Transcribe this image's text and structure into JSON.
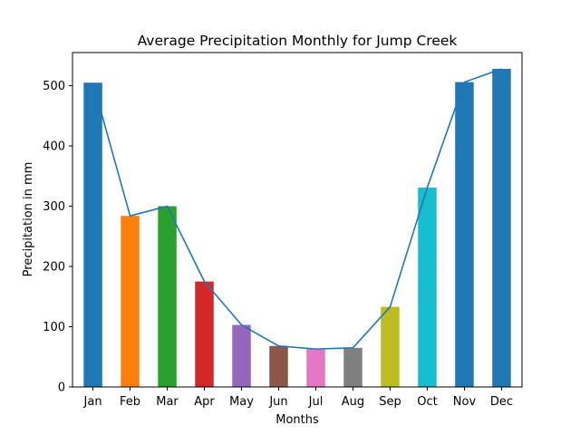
{
  "chart_data": {
    "type": "bar",
    "title": "Average Precipitation Monthly for Jump Creek",
    "xlabel": "Months",
    "ylabel": "Precipitation in mm",
    "categories": [
      "Jan",
      "Feb",
      "Mar",
      "Apr",
      "May",
      "Jun",
      "Jul",
      "Aug",
      "Sep",
      "Oct",
      "Nov",
      "Dec"
    ],
    "series": [
      {
        "name": "Precipitation (bars)",
        "type": "bar",
        "values": [
          505,
          284,
          300,
          175,
          103,
          68,
          63,
          65,
          133,
          331,
          506,
          528
        ]
      },
      {
        "name": "Precipitation (line)",
        "type": "line",
        "values": [
          505,
          284,
          300,
          175,
          103,
          68,
          63,
          65,
          133,
          331,
          506,
          528
        ]
      }
    ],
    "ylim": [
      0,
      555
    ],
    "yticks": [
      0,
      100,
      200,
      300,
      400,
      500
    ],
    "grid": false,
    "legend": "none",
    "bar_colors": [
      "#1f77b4",
      "#ff7f0e",
      "#2ca02c",
      "#d62728",
      "#9467bd",
      "#8c564b",
      "#e377c2",
      "#7f7f7f",
      "#bcbd22",
      "#17becf",
      "#1f77b4",
      "#1f77b4"
    ],
    "line_color": "#1f77b4"
  }
}
